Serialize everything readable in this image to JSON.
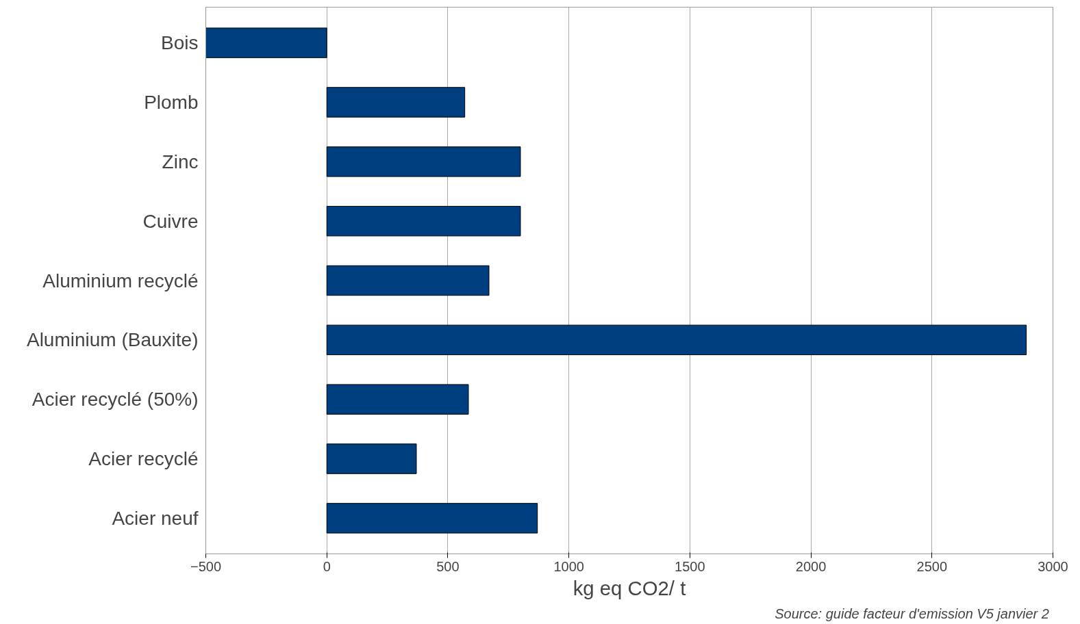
{
  "chart_data": {
    "type": "bar",
    "orientation": "horizontal",
    "categories": [
      "Bois",
      "Plomb",
      "Zinc",
      "Cuivre",
      "Aluminium recyclé",
      "Aluminium (Bauxite)",
      "Acier recyclé (50%)",
      "Acier recyclé",
      "Acier neuf"
    ],
    "values": [
      -500,
      570,
      800,
      800,
      670,
      2890,
      585,
      370,
      870
    ],
    "color": "#003f7f",
    "xlim": [
      -500,
      3000
    ],
    "xticks": [
      -500,
      0,
      500,
      1000,
      1500,
      2000,
      2500,
      3000
    ],
    "xlabel": "kg eq CO2/ t",
    "annotations": [
      "Source:  guide facteur d'emission V5 janvier 2"
    ],
    "grid": "x"
  }
}
